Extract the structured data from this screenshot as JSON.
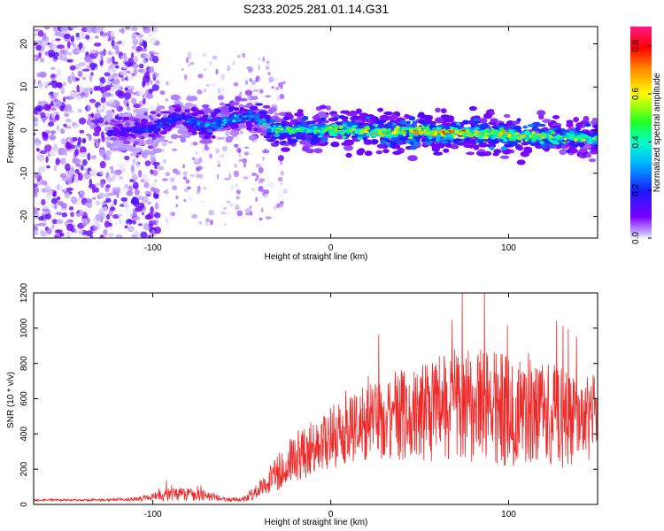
{
  "figure_title": "S233.2025.281.01.14.G31",
  "chart_data": [
    {
      "type": "heatmap",
      "title": "S233.2025.281.01.14.G31",
      "xlabel": "Height of straight line (km)",
      "ylabel": "Frequency (Hz)",
      "xlim": [
        -167,
        150
      ],
      "ylim": [
        -25,
        24
      ],
      "xticks": [
        -100,
        0,
        100
      ],
      "yticks": [
        -20,
        -10,
        0,
        10,
        20
      ],
      "colorbar": {
        "label": "Normalized spectral amplitude",
        "range": [
          0,
          0.88
        ],
        "ticks": [
          0.0,
          0.2,
          0.4,
          0.6,
          0.8
        ],
        "colors": [
          "#f4f4ff",
          "#7b00ff",
          "#1a1aff",
          "#00b0ff",
          "#00ffcc",
          "#22ff22",
          "#ffff00",
          "#ff8800",
          "#ff0000",
          "#ff1a88"
        ]
      },
      "ridge": [
        {
          "x": -120,
          "f": -0.5,
          "amp": 0.15
        },
        {
          "x": -100,
          "f": 0.5,
          "amp": 0.2
        },
        {
          "x": -85,
          "f": 3.0,
          "amp": 0.2
        },
        {
          "x": -70,
          "f": 1.0,
          "amp": 0.3
        },
        {
          "x": -45,
          "f": 3.5,
          "amp": 0.3
        },
        {
          "x": -30,
          "f": 0.0,
          "amp": 0.4
        },
        {
          "x": 0,
          "f": 0.0,
          "amp": 0.5
        },
        {
          "x": 25,
          "f": -0.5,
          "amp": 0.55
        },
        {
          "x": 50,
          "f": -0.5,
          "amp": 0.6
        },
        {
          "x": 75,
          "f": -0.5,
          "amp": 0.6
        },
        {
          "x": 100,
          "f": -1.0,
          "amp": 0.55
        },
        {
          "x": 125,
          "f": -1.5,
          "amp": 0.5
        },
        {
          "x": 150,
          "f": -2.0,
          "amp": 0.45
        }
      ]
    },
    {
      "type": "line",
      "xlabel": "Height of straight line (km)",
      "ylabel": "SNR (10 * v/v)",
      "xlim": [
        -167,
        150
      ],
      "ylim": [
        0,
        1200
      ],
      "xticks": [
        -100,
        0,
        100
      ],
      "yticks": [
        0,
        200,
        400,
        600,
        800,
        1000,
        1200
      ],
      "line_color": "#ef2a2a",
      "series": [
        {
          "name": "SNR",
          "x": [
            -167,
            -150,
            -130,
            -110,
            -100,
            -90,
            -80,
            -70,
            -60,
            -50,
            -40,
            -35,
            -30,
            -25,
            -20,
            -10,
            0,
            10,
            20,
            30,
            40,
            50,
            60,
            70,
            80,
            90,
            100,
            110,
            120,
            130,
            140,
            150
          ],
          "y": [
            25,
            25,
            25,
            30,
            40,
            60,
            60,
            50,
            30,
            25,
            80,
            140,
            180,
            230,
            270,
            320,
            380,
            430,
            470,
            500,
            510,
            520,
            540,
            560,
            560,
            550,
            540,
            530,
            510,
            490,
            470,
            460
          ],
          "spread": [
            5,
            5,
            6,
            10,
            25,
            40,
            40,
            30,
            12,
            10,
            50,
            80,
            100,
            120,
            140,
            160,
            180,
            200,
            220,
            240,
            260,
            280,
            300,
            320,
            330,
            330,
            320,
            310,
            300,
            290,
            280,
            270
          ]
        }
      ]
    }
  ]
}
